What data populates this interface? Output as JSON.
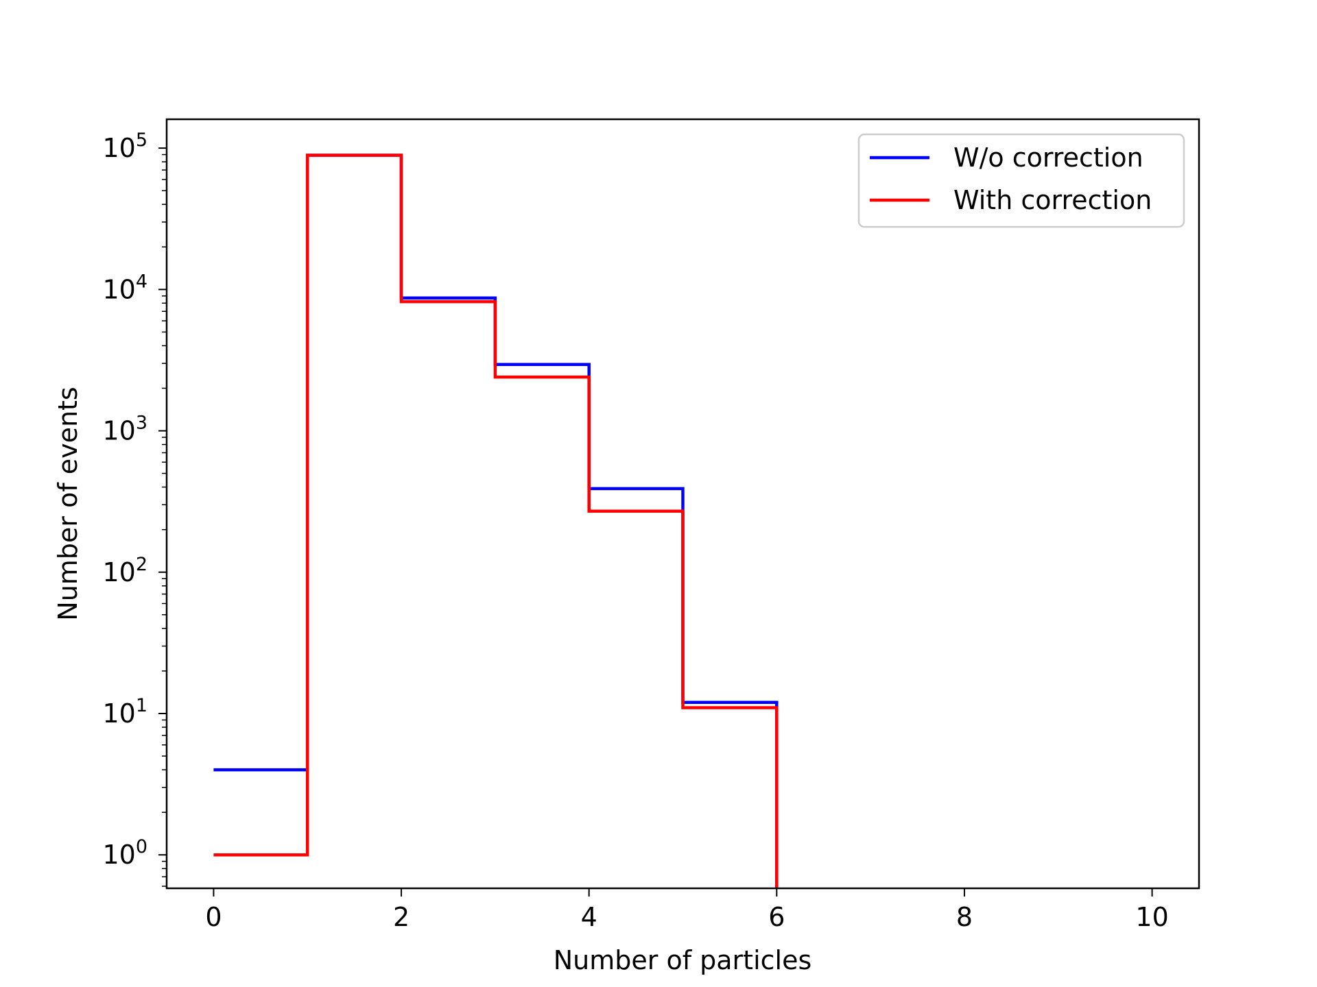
{
  "chart_data": {
    "type": "line",
    "drawstyle": "steps-post",
    "xlabel": "Number of particles",
    "ylabel": "Number of events",
    "xlim": [
      -0.5,
      10.5
    ],
    "ylim": [
      0.58,
      160000
    ],
    "yscale": "log",
    "grid": false,
    "legend_position": "top-right",
    "x_ticks": [
      0,
      2,
      4,
      6,
      8,
      10
    ],
    "x_tick_labels": [
      "0",
      "2",
      "4",
      "6",
      "8",
      "10"
    ],
    "y_ticks": [
      {
        "value": 1,
        "base": "10",
        "exp": "0"
      },
      {
        "value": 10,
        "base": "10",
        "exp": "1"
      },
      {
        "value": 100,
        "base": "10",
        "exp": "2"
      },
      {
        "value": 1000,
        "base": "10",
        "exp": "3"
      },
      {
        "value": 10000,
        "base": "10",
        "exp": "4"
      },
      {
        "value": 100000,
        "base": "10",
        "exp": "5"
      }
    ],
    "bin_edges": [
      0,
      1,
      2,
      3,
      4,
      5,
      6
    ],
    "series": [
      {
        "name": "W/o correction",
        "color": "#0000ff",
        "values": [
          4,
          89000,
          8700,
          2950,
          390,
          12
        ]
      },
      {
        "name": "With correction",
        "color": "#ff0000",
        "values": [
          1,
          89000,
          8200,
          2400,
          270,
          11
        ]
      }
    ]
  }
}
